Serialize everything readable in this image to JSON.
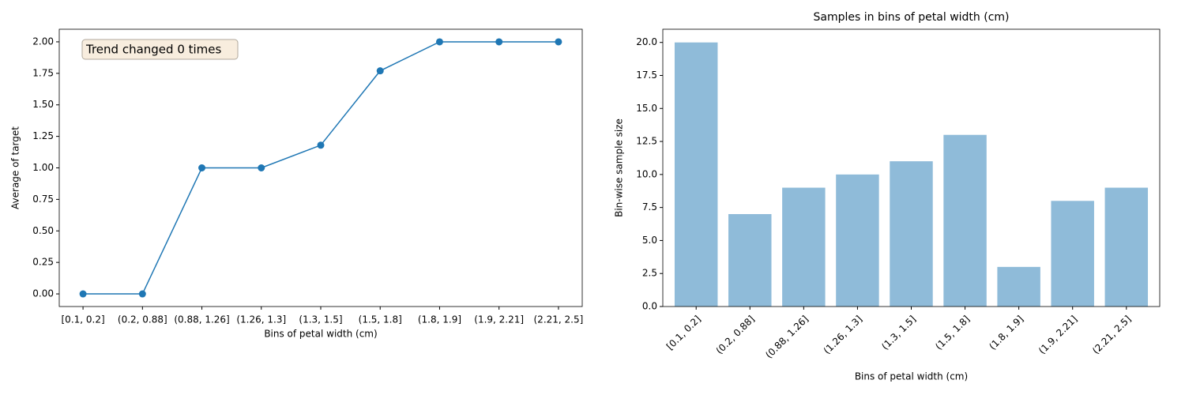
{
  "chart_data": [
    {
      "type": "line",
      "xlabel": "Bins of petal width (cm)",
      "ylabel": "Average of target",
      "annotation": "Trend changed 0 times",
      "categories": [
        "[0.1,  0.2]",
        "(0.2, 0.88]",
        "(0.88, 1.26]",
        "(1.26, 1.3]",
        "(1.3, 1.5]",
        "(1.5, 1.8]",
        "(1.8, 1.9]",
        "(1.9, 2.21]",
        "(2.21, 2.5]"
      ],
      "values": [
        0,
        0,
        1,
        1,
        1.18,
        1.77,
        2,
        2,
        2
      ],
      "color": "#1f77b4",
      "ylim": [
        -0.1,
        2.1
      ],
      "yticks": [
        {
          "value": 0,
          "label": "0.00"
        },
        {
          "value": 0.25,
          "label": "0.25"
        },
        {
          "value": 0.5,
          "label": "0.50"
        },
        {
          "value": 0.75,
          "label": "0.75"
        },
        {
          "value": 1,
          "label": "1.00"
        },
        {
          "value": 1.25,
          "label": "1.25"
        },
        {
          "value": 1.5,
          "label": "1.50"
        },
        {
          "value": 1.75,
          "label": "1.75"
        },
        {
          "value": 2,
          "label": "2.00"
        }
      ]
    },
    {
      "type": "bar",
      "title": "Samples in bins of petal width (cm)",
      "xlabel": "Bins of petal width (cm)",
      "ylabel": "Bin-wise sample size",
      "categories": [
        "[0.1, 0.2]",
        "(0.2, 0.88]",
        "(0.88, 1.26]",
        "(1.26, 1.3]",
        "(1.3, 1.5]",
        "(1.5, 1.8]",
        "(1.8, 1.9]",
        "(1.9, 2.21]",
        "(2.21, 2.5]"
      ],
      "values": [
        20,
        7,
        9,
        10,
        11,
        13,
        3,
        8,
        9
      ],
      "color": "#8fbbd9",
      "ylim": [
        0,
        21
      ],
      "yticks": [
        {
          "value": 0,
          "label": "0.0"
        },
        {
          "value": 2.5,
          "label": "2.5"
        },
        {
          "value": 5,
          "label": "5.0"
        },
        {
          "value": 7.5,
          "label": "7.5"
        },
        {
          "value": 10,
          "label": "10.0"
        },
        {
          "value": 12.5,
          "label": "12.5"
        },
        {
          "value": 15,
          "label": "15.0"
        },
        {
          "value": 17.5,
          "label": "17.5"
        },
        {
          "value": 20,
          "label": "20.0"
        }
      ]
    }
  ]
}
